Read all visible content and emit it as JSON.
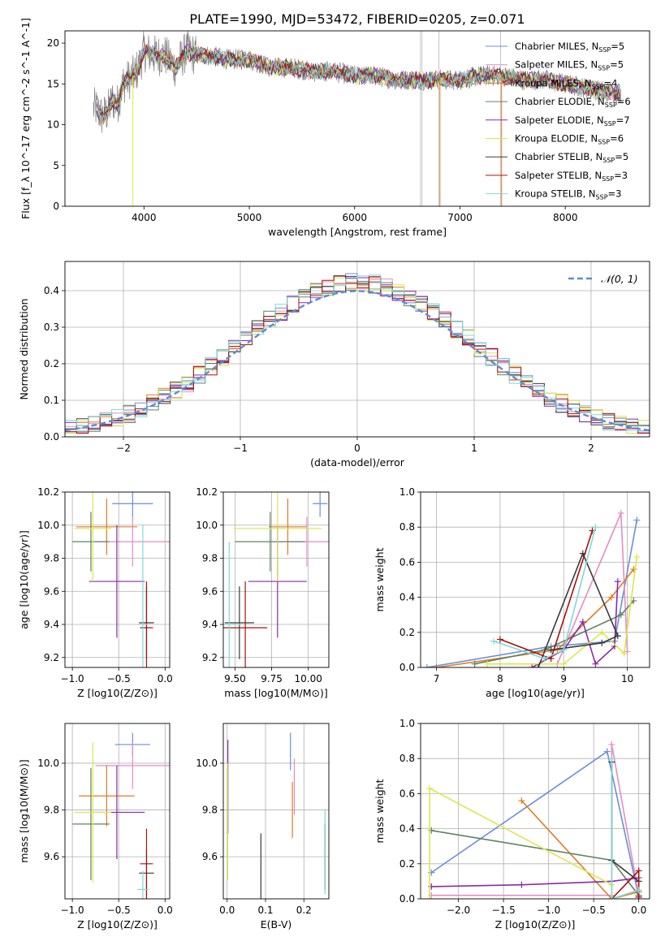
{
  "figure": {
    "title": "PLATE=1990, MJD=53472, FIBERID=0205, z=0.071"
  },
  "models": [
    {
      "name": "Chabrier MILES",
      "n": "5",
      "color": "#6a8fd8"
    },
    {
      "name": "Salpeter MILES",
      "n": "5",
      "color": "#e58cc5"
    },
    {
      "name": "Kroupa MILES",
      "n": "4",
      "color": "#e07b22"
    },
    {
      "name": "Chabrier ELODIE",
      "n": "6",
      "color": "#5d8460"
    },
    {
      "name": "Salpeter ELODIE",
      "n": "7",
      "color": "#8b2aa8"
    },
    {
      "name": "Kroupa ELODIE",
      "n": "6",
      "color": "#d9e84a"
    },
    {
      "name": "Chabrier STELIB",
      "n": "5",
      "color": "#3a3a3a"
    },
    {
      "name": "Salpeter STELIB",
      "n": "3",
      "color": "#a81010"
    },
    {
      "name": "Kroupa STELIB",
      "n": "3",
      "color": "#7fd8d8"
    }
  ],
  "chart_data": [
    {
      "id": "spectrum",
      "type": "line",
      "xlabel": "wavelength [Angstrom, rest frame]",
      "ylabel": "Flux [f_λ 10^-17 erg cm^-2 s^-1 A^-1]",
      "xlim": [
        3250,
        8800
      ],
      "ylim": [
        0,
        21.5
      ],
      "xticks": [
        4000,
        5000,
        6000,
        7000,
        8000
      ],
      "yticks": [
        0,
        5,
        10,
        15,
        20
      ],
      "legend": "upper right",
      "data_x": [
        3550,
        3600,
        3650,
        3700,
        3750,
        3800,
        3850,
        3900,
        3950,
        4000,
        4100,
        4200,
        4300,
        4400,
        4500,
        4600,
        4800,
        5000,
        5200,
        5400,
        5600,
        5800,
        6000,
        6200,
        6400,
        6600,
        6800,
        7000,
        7200,
        7400,
        7600,
        7800,
        8000,
        8200,
        8400
      ],
      "data_y": [
        12,
        11,
        11.5,
        13,
        12.5,
        15,
        15.5,
        16,
        17,
        19,
        18.5,
        18.5,
        17,
        19,
        18.5,
        18.5,
        18,
        18,
        17,
        17,
        16.5,
        16.5,
        16,
        16,
        15.5,
        15.5,
        15.5,
        15.5,
        16,
        16,
        15.5,
        15.5,
        15,
        14.5,
        14
      ]
    },
    {
      "id": "residuals",
      "type": "histogram",
      "xlabel": "(data-model)/error",
      "ylabel": "Normed distribution",
      "xlim": [
        -2.5,
        2.5
      ],
      "ylim": [
        0,
        0.48
      ],
      "xticks": [
        -2,
        -1,
        0,
        1,
        2
      ],
      "yticks": [
        0.0,
        0.1,
        0.2,
        0.3,
        0.4
      ],
      "grid": true,
      "legend": "upper right",
      "reference_label": "𝒩(0, 1)",
      "reference_color": "#5f8ad4"
    },
    {
      "id": "age_vs_z",
      "type": "errorbar",
      "xlabel": "Z [log10(Z/Z⊙)]",
      "ylabel": "age  [log10(age/yr)]",
      "xlim": [
        -1.08,
        0.05
      ],
      "ylim": [
        9.14,
        10.2
      ],
      "xticks": [
        -1.0,
        -0.5,
        0.0
      ],
      "yticks": [
        9.2,
        9.4,
        9.6,
        9.8,
        10.0,
        10.2
      ],
      "grid": true,
      "points": [
        {
          "model": 0,
          "x": -0.35,
          "xerr": 0.22,
          "y": 10.13,
          "yerr": 0.08
        },
        {
          "model": 1,
          "x": -0.35,
          "xerr": 0.4,
          "y": 9.9,
          "yerr": 0.15
        },
        {
          "model": 2,
          "x": -0.63,
          "xerr": 0.33,
          "y": 9.99,
          "yerr": 0.17
        },
        {
          "model": 3,
          "x": -0.8,
          "xerr": 0.2,
          "y": 9.9,
          "yerr": 0.18
        },
        {
          "model": 4,
          "x": -0.52,
          "xerr": 0.3,
          "y": 9.66,
          "yerr": 0.34
        },
        {
          "model": 5,
          "x": -0.78,
          "xerr": 0.2,
          "y": 9.98,
          "yerr": 0.32
        },
        {
          "model": 6,
          "x": -0.2,
          "xerr": 0.08,
          "y": 9.41,
          "yerr": 0.22
        },
        {
          "model": 7,
          "x": -0.2,
          "xerr": 0.07,
          "y": 9.38,
          "yerr": 0.28
        },
        {
          "model": 8,
          "x": -0.24,
          "xerr": 0.06,
          "y": 9.4,
          "yerr": 0.6
        }
      ]
    },
    {
      "id": "age_vs_mass",
      "type": "errorbar",
      "xlabel": "mass [log10(M/M⊙)]",
      "ylabel": "",
      "xlim": [
        9.42,
        10.14
      ],
      "ylim": [
        9.14,
        10.2
      ],
      "xticks": [
        9.5,
        9.75,
        10.0
      ],
      "yticks": [
        9.2,
        9.4,
        9.6,
        9.8,
        10.0,
        10.2
      ],
      "grid": true,
      "points": [
        {
          "model": 0,
          "x": 10.08,
          "xerr": 0.05,
          "y": 10.13,
          "yerr": 0.08
        },
        {
          "model": 1,
          "x": 9.99,
          "xerr": 0.23,
          "y": 9.9,
          "yerr": 0.15
        },
        {
          "model": 2,
          "x": 9.86,
          "xerr": 0.13,
          "y": 9.99,
          "yerr": 0.17
        },
        {
          "model": 3,
          "x": 9.74,
          "xerr": 0.24,
          "y": 9.9,
          "yerr": 0.18
        },
        {
          "model": 4,
          "x": 9.79,
          "xerr": 0.2,
          "y": 9.66,
          "yerr": 0.34
        },
        {
          "model": 5,
          "x": 9.79,
          "xerr": 0.3,
          "y": 9.98,
          "yerr": 0.32
        },
        {
          "model": 6,
          "x": 9.53,
          "xerr": 0.1,
          "y": 9.41,
          "yerr": 0.22
        },
        {
          "model": 7,
          "x": 9.57,
          "xerr": 0.15,
          "y": 9.38,
          "yerr": 0.28
        },
        {
          "model": 8,
          "x": 9.46,
          "xerr": 0.08,
          "y": 9.4,
          "yerr": 0.5
        }
      ]
    },
    {
      "id": "mass_weight_vs_age",
      "type": "line",
      "xlabel": "age  [log10(age/yr)]",
      "ylabel": "mass weight",
      "xlim": [
        6.75,
        10.35
      ],
      "ylim": [
        0,
        1.0
      ],
      "xticks": [
        7,
        8,
        9,
        10
      ],
      "yticks": [
        0.0,
        0.2,
        0.4,
        0.6,
        0.8,
        1.0
      ],
      "grid": true,
      "series": [
        {
          "model": 0,
          "x": [
            6.85,
            8.8,
            9.8,
            10.15
          ],
          "y": [
            0.0,
            0.12,
            0.15,
            0.84
          ]
        },
        {
          "model": 1,
          "x": [
            8.9,
            9.9,
            10.0
          ],
          "y": [
            0.02,
            0.88,
            0.09
          ]
        },
        {
          "model": 2,
          "x": [
            7.0,
            8.9,
            9.75,
            10.1
          ],
          "y": [
            0.0,
            0.1,
            0.4,
            0.56
          ]
        },
        {
          "model": 3,
          "x": [
            7.6,
            8.7,
            9.9,
            10.1
          ],
          "y": [
            0.02,
            0.1,
            0.3,
            0.38
          ]
        },
        {
          "model": 4,
          "x": [
            8.5,
            9.0,
            9.3,
            9.5,
            9.8,
            9.85
          ],
          "y": [
            0.0,
            0.1,
            0.26,
            0.02,
            0.12,
            0.49
          ]
        },
        {
          "model": 5,
          "x": [
            7.8,
            9.0,
            9.6,
            9.95,
            10.15
          ],
          "y": [
            0.02,
            0.02,
            0.2,
            0.08,
            0.63
          ]
        },
        {
          "model": 6,
          "x": [
            8.6,
            9.3,
            9.85,
            9.6,
            8.8
          ],
          "y": [
            0.0,
            0.65,
            0.18,
            0.14,
            0.1
          ]
        },
        {
          "model": 7,
          "x": [
            8.0,
            8.8,
            9.45
          ],
          "y": [
            0.16,
            0.05,
            0.78
          ]
        },
        {
          "model": 8,
          "x": [
            7.9,
            8.7,
            9.0,
            9.5
          ],
          "y": [
            0.15,
            0.05,
            0.1,
            0.8
          ]
        }
      ]
    },
    {
      "id": "mass_vs_z",
      "type": "errorbar",
      "xlabel": "Z [log10(Z/Z⊙)]",
      "ylabel": "mass [log10(M/M⊙)]",
      "xlim": [
        -1.08,
        0.05
      ],
      "ylim": [
        9.42,
        10.17
      ],
      "xticks": [
        -1.0,
        -0.5,
        0.0
      ],
      "yticks": [
        9.6,
        9.8,
        10.0
      ],
      "grid": true,
      "points": [
        {
          "model": 0,
          "x": -0.35,
          "xerr": 0.19,
          "y": 10.08,
          "yerr": 0.05
        },
        {
          "model": 1,
          "x": -0.35,
          "xerr": 0.4,
          "y": 9.99,
          "yerr": 0.1
        },
        {
          "model": 2,
          "x": -0.63,
          "xerr": 0.3,
          "y": 9.86,
          "yerr": 0.13
        },
        {
          "model": 3,
          "x": -0.8,
          "xerr": 0.2,
          "y": 9.74,
          "yerr": 0.24
        },
        {
          "model": 4,
          "x": -0.52,
          "xerr": 0.3,
          "y": 9.79,
          "yerr": 0.2
        },
        {
          "model": 5,
          "x": -0.78,
          "xerr": 0.2,
          "y": 9.79,
          "yerr": 0.3
        },
        {
          "model": 6,
          "x": -0.2,
          "xerr": 0.08,
          "y": 9.53,
          "yerr": 0.1
        },
        {
          "model": 7,
          "x": -0.2,
          "xerr": 0.07,
          "y": 9.57,
          "yerr": 0.15
        },
        {
          "model": 8,
          "x": -0.24,
          "xerr": 0.06,
          "y": 9.46,
          "yerr": 0.08
        }
      ]
    },
    {
      "id": "mass_vs_ebv",
      "type": "errorbar",
      "xlabel": "E(B-V)",
      "ylabel": "",
      "xlim": [
        -0.01,
        0.265
      ],
      "ylim": [
        9.42,
        10.17
      ],
      "xticks": [
        0.0,
        0.1,
        0.2
      ],
      "yticks": [
        9.6,
        9.8,
        10.0
      ],
      "grid": true,
      "points": [
        {
          "model": 0,
          "x": 0.165,
          "xerr": 0,
          "y": 10.05,
          "yerr": 0.08
        },
        {
          "model": 1,
          "x": 0.175,
          "xerr": 0,
          "y": 9.9,
          "yerr": 0.12
        },
        {
          "model": 2,
          "x": 0.17,
          "xerr": 0,
          "y": 9.8,
          "yerr": 0.12
        },
        {
          "model": 3,
          "x": 0.001,
          "xerr": 0,
          "y": 9.74,
          "yerr": 0.24
        },
        {
          "model": 4,
          "x": 0.002,
          "xerr": 0,
          "y": 9.9,
          "yerr": 0.2
        },
        {
          "model": 5,
          "x": 0.001,
          "xerr": 0,
          "y": 9.75,
          "yerr": 0.25
        },
        {
          "model": 6,
          "x": 0.088,
          "xerr": 0,
          "y": 9.53,
          "yerr": 0.17
        },
        {
          "model": 7,
          "x": 0.255,
          "xerr": 0,
          "y": 9.6,
          "yerr": 0.14
        },
        {
          "model": 8,
          "x": 0.255,
          "xerr": 0,
          "y": 9.62,
          "yerr": 0.18
        }
      ]
    },
    {
      "id": "mass_weight_vs_z",
      "type": "line",
      "xlabel": "Z [log10(Z/Z⊙)]",
      "ylabel": "mass weight",
      "xlim": [
        -2.42,
        0.12
      ],
      "ylim": [
        0,
        1.0
      ],
      "xticks": [
        -2.0,
        -1.5,
        -1.0,
        -0.5,
        0.0
      ],
      "yticks": [
        0.0,
        0.2,
        0.4,
        0.6,
        0.8,
        1.0
      ],
      "grid": true,
      "series": [
        {
          "model": 0,
          "x": [
            -2.3,
            -0.35,
            0.0
          ],
          "y": [
            0.15,
            0.84,
            0.01
          ]
        },
        {
          "model": 1,
          "x": [
            -2.3,
            -0.3,
            -0.3,
            0.0
          ],
          "y": [
            0.02,
            0.02,
            0.88,
            0.02
          ]
        },
        {
          "model": 2,
          "x": [
            -1.3,
            -0.3,
            0.0
          ],
          "y": [
            0.56,
            0.0,
            0.04
          ]
        },
        {
          "model": 3,
          "x": [
            -2.3,
            -0.3,
            0.0
          ],
          "y": [
            0.39,
            0.22,
            0.02
          ]
        },
        {
          "model": 4,
          "x": [
            -2.3,
            -1.3,
            -0.3,
            0.0
          ],
          "y": [
            0.07,
            0.08,
            0.1,
            0.12
          ]
        },
        {
          "model": 5,
          "x": [
            -2.32,
            -2.32,
            -0.3,
            -0.3,
            0.0
          ],
          "y": [
            0.0,
            0.63,
            0.08,
            0.0,
            0.05
          ]
        },
        {
          "model": 6,
          "x": [
            -0.3,
            -0.3,
            0.0
          ],
          "y": [
            0.78,
            0.22,
            0.1
          ]
        },
        {
          "model": 7,
          "x": [
            -0.3,
            0.0,
            0.0
          ],
          "y": [
            0.0,
            0.16,
            0.01
          ]
        },
        {
          "model": 8,
          "x": [
            -0.3,
            -0.3,
            0.0
          ],
          "y": [
            0.8,
            0.0,
            0.05
          ]
        }
      ]
    }
  ]
}
